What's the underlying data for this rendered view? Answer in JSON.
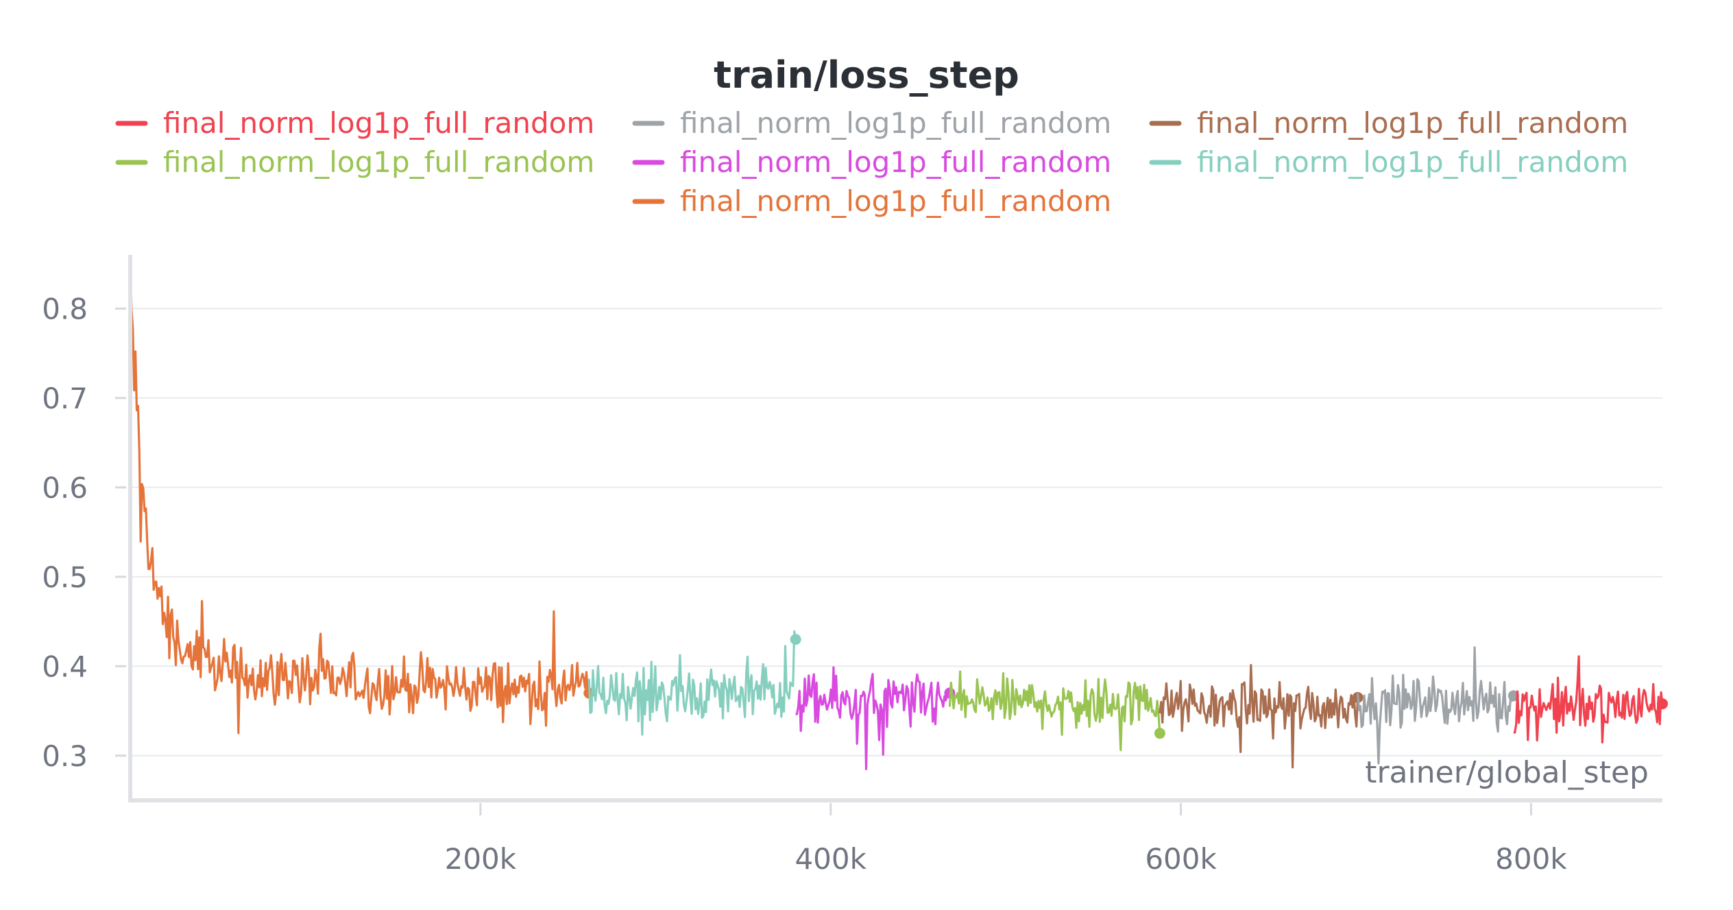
{
  "chart_data": {
    "type": "line",
    "title": "train/loss_step",
    "xlabel": "trainer/global_step",
    "ylabel": "",
    "xlim": [
      0,
      875000
    ],
    "ylim": [
      0.25,
      0.86
    ],
    "x_ticks": [
      200000,
      400000,
      600000,
      800000
    ],
    "x_tick_labels": [
      "200k",
      "400k",
      "600k",
      "800k"
    ],
    "y_ticks": [
      0.3,
      0.4,
      0.5,
      0.6,
      0.7,
      0.8
    ],
    "y_tick_labels": [
      "0.3",
      "0.4",
      "0.5",
      "0.6",
      "0.7",
      "0.8"
    ],
    "grid": true,
    "legend_placement": "top",
    "legend": [
      {
        "name": "final_norm_log1p_full_random",
        "color": "#f0424f"
      },
      {
        "name": "final_norm_log1p_full_random",
        "color": "#9ea3a8"
      },
      {
        "name": "final_norm_log1p_full_random",
        "color": "#a96e50"
      },
      {
        "name": "final_norm_log1p_full_random",
        "color": "#99c452"
      },
      {
        "name": "final_norm_log1p_full_random",
        "color": "#d94be0"
      },
      {
        "name": "final_norm_log1p_full_random",
        "color": "#86cfbf"
      },
      {
        "name": "final_norm_log1p_full_random",
        "color": "#e5743a"
      }
    ],
    "series": [
      {
        "color": "#e5743a",
        "x_start": 0,
        "x_end": 262000,
        "start_value": 0.77,
        "mean": 0.375,
        "spread": 0.045,
        "end_value": 0.37
      },
      {
        "color": "#86cfbf",
        "x_start": 262000,
        "x_end": 380000,
        "mean": 0.37,
        "spread": 0.045,
        "end_value": 0.43
      },
      {
        "color": "#d94be0",
        "x_start": 380000,
        "x_end": 468000,
        "mean": 0.36,
        "spread": 0.045,
        "end_value": 0.37
      },
      {
        "color": "#99c452",
        "x_start": 468000,
        "x_end": 588000,
        "mean": 0.36,
        "spread": 0.04,
        "end_value": 0.325
      },
      {
        "color": "#a96e50",
        "x_start": 588000,
        "x_end": 701000,
        "mean": 0.355,
        "spread": 0.04,
        "end_value": 0.365
      },
      {
        "color": "#9ea3a8",
        "x_start": 701000,
        "x_end": 790000,
        "mean": 0.36,
        "spread": 0.04,
        "end_value": 0.367
      },
      {
        "color": "#f0424f",
        "x_start": 790000,
        "x_end": 875000,
        "mean": 0.355,
        "spread": 0.045,
        "end_value": 0.358
      }
    ]
  }
}
